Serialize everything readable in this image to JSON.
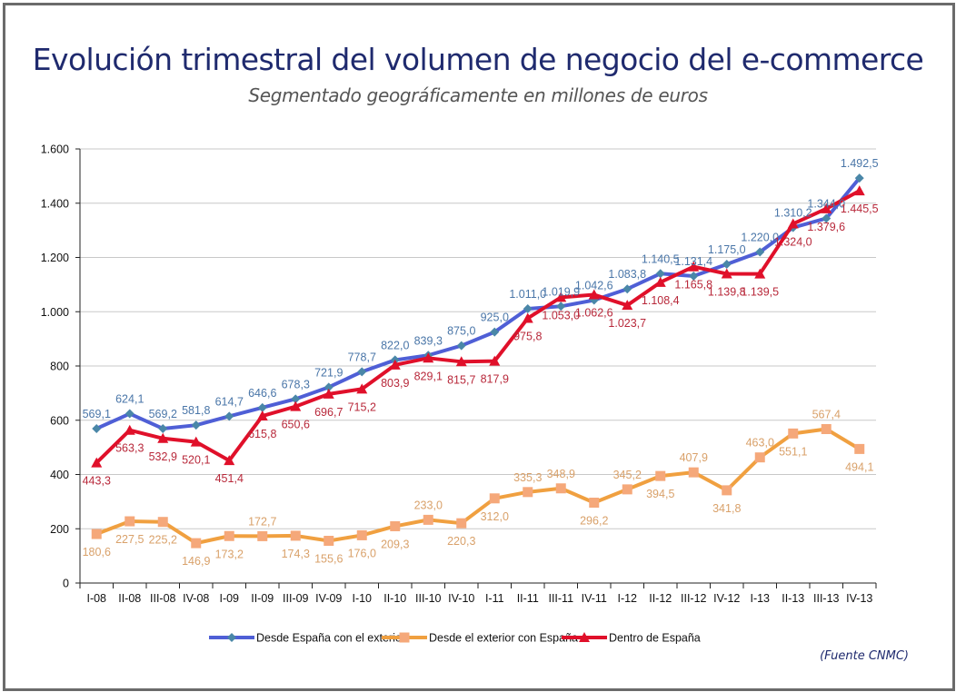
{
  "header": {
    "title": "Evolución trimestral del volumen de negocio del e-commerce",
    "subtitle": "Segmentado geográficamente en millones de euros"
  },
  "footer": {
    "source": "(Fuente CNMC)"
  },
  "chart_data": {
    "type": "line",
    "title": "Evolución trimestral del volumen de negocio del e-commerce",
    "subtitle": "Segmentado geográficamente en millones de euros",
    "xlabel": "",
    "ylabel": "",
    "ylim": [
      0,
      1600
    ],
    "yticks": [
      0,
      200,
      400,
      600,
      800,
      1000,
      1200,
      1400,
      1600
    ],
    "ytick_labels": [
      "0",
      "200",
      "400",
      "600",
      "800",
      "1.000",
      "1.200",
      "1.400",
      "1.600"
    ],
    "grid": true,
    "legend_position": "bottom",
    "categories": [
      "I-08",
      "II-08",
      "III-08",
      "IV-08",
      "I-09",
      "II-09",
      "III-09",
      "IV-09",
      "I-10",
      "II-10",
      "III-10",
      "IV-10",
      "I-11",
      "II-11",
      "III-11",
      "IV-11",
      "I-12",
      "II-12",
      "III-12",
      "IV-12",
      "I-13",
      "II-13",
      "III-13",
      "IV-13"
    ],
    "series": [
      {
        "name": "Desde España con el exterior",
        "color": "#4f5fd6",
        "marker": "diamond",
        "marker_color": "#4a87a8",
        "label_color": "#4a76a8",
        "values": [
          569.1,
          624.1,
          569.2,
          581.8,
          614.7,
          646.6,
          678.3,
          721.9,
          778.7,
          822.0,
          839.3,
          875.0,
          925.0,
          1011.0,
          1019.9,
          1042.6,
          1083.8,
          1140.5,
          1131.4,
          1175.0,
          1220.0,
          1310.2,
          1344.0,
          1492.5
        ],
        "labels": [
          "569,1",
          "624,1",
          "569,2",
          "581,8",
          "614,7",
          "646,6",
          "678,3",
          "721,9",
          "778,7",
          "822,0",
          "839,3",
          "875,0",
          "925,0",
          "1.011,0",
          "1.019,9",
          "1.042,6",
          "1.083,8",
          "1.140,5",
          "1.131,4",
          "1.175,0",
          "1.220,0",
          "1.310,2",
          "1.344,0",
          "1.492,5"
        ]
      },
      {
        "name": "Desde el exterior con España",
        "color": "#f0a040",
        "marker": "square",
        "marker_color": "#f5a87a",
        "label_color": "#d9a16a",
        "values": [
          180.6,
          227.5,
          225.2,
          146.9,
          173.2,
          172.7,
          174.3,
          155.6,
          176.0,
          209.3,
          233.0,
          220.3,
          312.0,
          335.3,
          348.9,
          296.2,
          345.2,
          394.5,
          407.9,
          341.8,
          463.0,
          551.1,
          567.4,
          494.1
        ],
        "labels": [
          "180,6",
          "227,5",
          "225,2",
          "146,9",
          "173,2",
          "172,7",
          "174,3",
          "155,6",
          "176,0",
          "209,3",
          "233,0",
          "220,3",
          "312,0",
          "335,3",
          "348,9",
          "296,2",
          "345,2",
          "394,5",
          "407,9",
          "341,8",
          "463,0",
          "551,1",
          "567,4",
          "494,1"
        ]
      },
      {
        "name": "Dentro de España",
        "color": "#e0102a",
        "marker": "triangle",
        "marker_color": "#e0102a",
        "label_color": "#b8283a",
        "values": [
          443.3,
          563.3,
          532.9,
          520.1,
          451.4,
          615.8,
          650.6,
          696.7,
          715.2,
          803.9,
          829.1,
          815.7,
          817.9,
          975.8,
          1053.0,
          1062.6,
          1023.7,
          1108.4,
          1165.8,
          1139.8,
          1139.5,
          1324.0,
          1379.6,
          1445.5
        ],
        "labels": [
          "443,3",
          "563,3",
          "532,9",
          "520,1",
          "451,4",
          "615,8",
          "650,6",
          "696,7",
          "715,2",
          "803,9",
          "829,1",
          "815,7",
          "817,9",
          "975,8",
          "1.053,0",
          "1.062,6",
          "1.023,7",
          "1.108,4",
          "1.165,8",
          "1.139,8",
          "1.139,5",
          "1.324,0",
          "1.379,6",
          "1.445,5"
        ]
      }
    ]
  }
}
